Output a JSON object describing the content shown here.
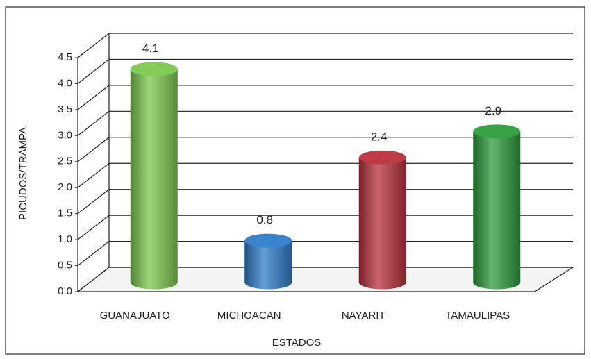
{
  "chart_data": {
    "type": "bar",
    "x_label": "ESTADOS",
    "y_label": "PICUDOS/TRAMPA",
    "categories": [
      "GUANAJUATO",
      "MICHOACAN",
      "NAYARIT",
      "TAMAULIPAS"
    ],
    "values": [
      4.1,
      0.8,
      2.4,
      2.9
    ],
    "colors": [
      "#7dc94f",
      "#2f7dc9",
      "#b8313d",
      "#2f9c3c"
    ],
    "ylim": [
      0,
      4.5
    ],
    "yticks": [
      {
        "value": 0,
        "label": "0.0"
      },
      0.5,
      {
        "value": 1,
        "label": "1.0"
      },
      1.5,
      {
        "value": 2,
        "label": "2.0"
      },
      2.5,
      {
        "value": 3,
        "label": "3.0"
      },
      3.5,
      {
        "value": 4,
        "label": "4.0"
      },
      4.5
    ],
    "grid": true
  }
}
